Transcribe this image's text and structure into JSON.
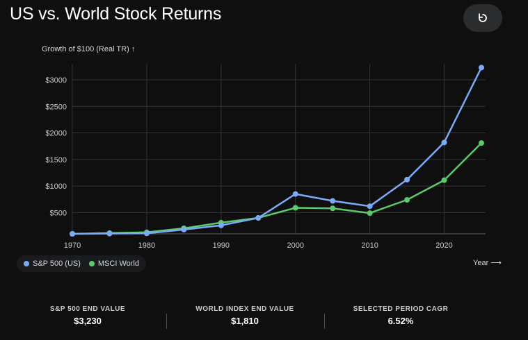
{
  "header": {
    "title": "US vs. World Stock Returns",
    "reset_icon": "reset-icon"
  },
  "chart_data": {
    "type": "line",
    "title": "US vs. World Stock Returns",
    "ylabel": "Growth of $100 (Real TR) ↑",
    "xlabel": "Year ⟶",
    "x": [
      1970,
      1975,
      1980,
      1985,
      1990,
      1995,
      2000,
      2005,
      2010,
      2015,
      2020,
      2025
    ],
    "xticks": [
      "1970",
      "1980",
      "1990",
      "2000",
      "2010",
      "2020"
    ],
    "xtick_values": [
      1970,
      1980,
      1990,
      2000,
      2010,
      2020
    ],
    "yticks": [
      "$500",
      "$1000",
      "$1500",
      "$2000",
      "$2500",
      "$3000"
    ],
    "ytick_values": [
      500,
      1000,
      1500,
      2000,
      2500,
      3000
    ],
    "xlim": [
      1970,
      2025
    ],
    "ylim": [
      100,
      3300
    ],
    "grid": true,
    "legend_position": "bottom-left",
    "series": [
      {
        "name": "S&P 500 (US)",
        "color": "#7baaf7",
        "values": [
          100,
          105,
          110,
          180,
          260,
          400,
          850,
          720,
          620,
          1120,
          1820,
          3230
        ]
      },
      {
        "name": "MSCI World",
        "color": "#5cc96b",
        "values": [
          100,
          115,
          130,
          205,
          310,
          400,
          590,
          580,
          490,
          740,
          1110,
          1810
        ]
      }
    ]
  },
  "stats": [
    {
      "label": "S&P 500 END VALUE",
      "value": "$3,230"
    },
    {
      "label": "WORLD INDEX END VALUE",
      "value": "$1,810"
    },
    {
      "label": "SELECTED PERIOD CAGR",
      "value": "6.52%"
    }
  ]
}
